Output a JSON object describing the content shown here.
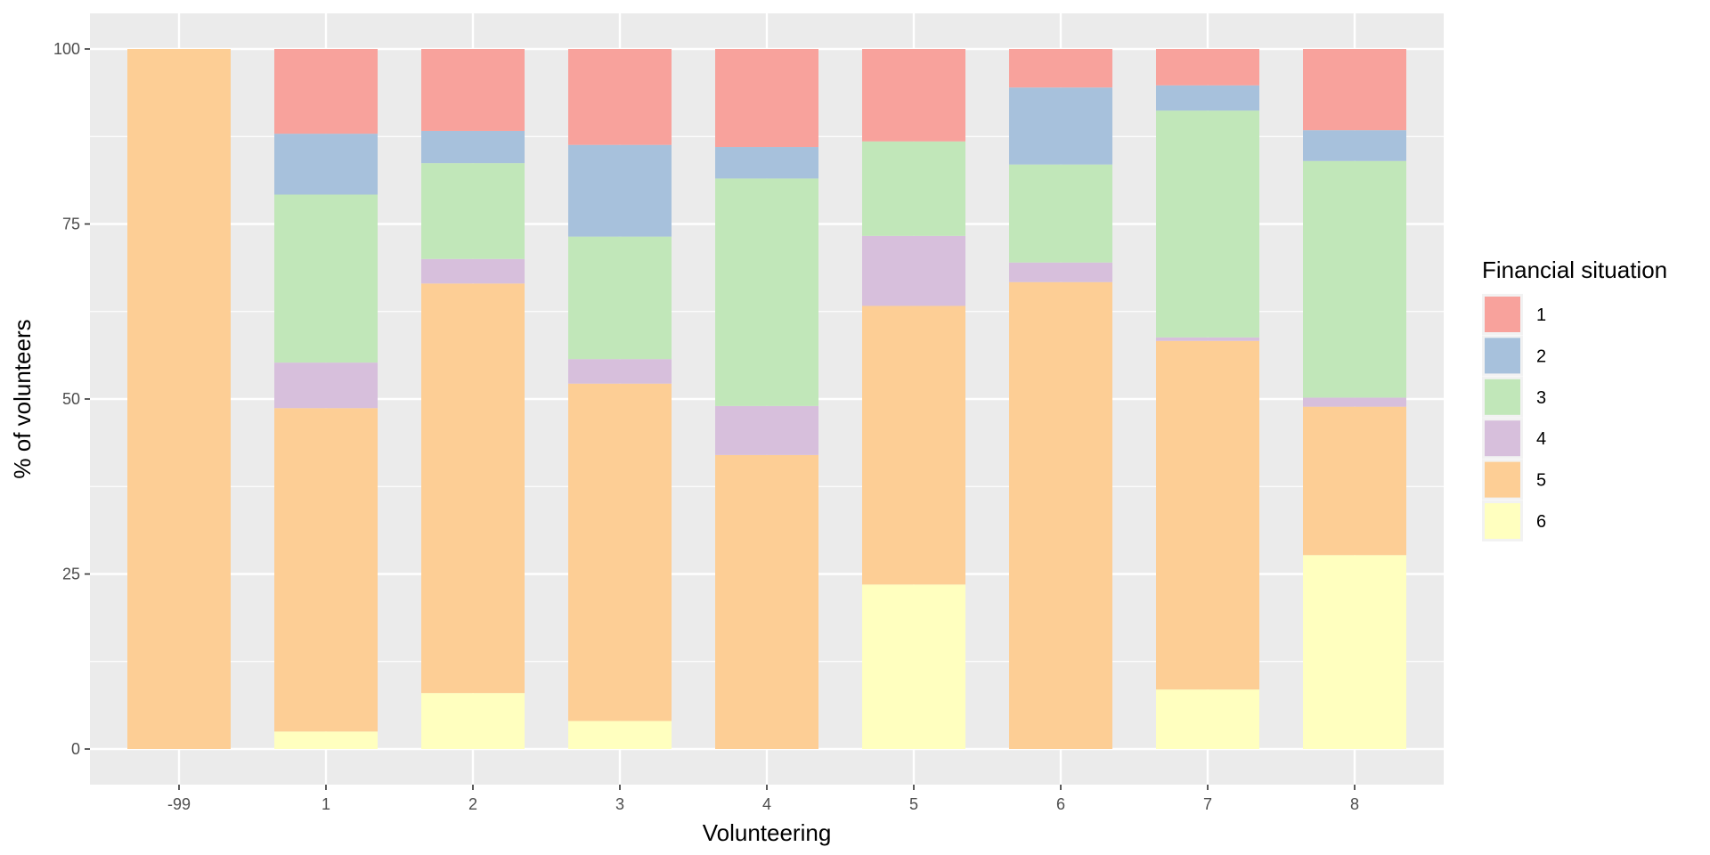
{
  "chart_data": {
    "type": "bar",
    "stacked": true,
    "categories": [
      "-99",
      "1",
      "2",
      "3",
      "4",
      "5",
      "6",
      "7",
      "8"
    ],
    "xlabel": "Volunteering",
    "ylabel": "% of volunteers",
    "ylim": [
      0,
      100
    ],
    "yticks": [
      "0",
      "25",
      "50",
      "75",
      "100"
    ],
    "grid": true,
    "legend": {
      "title": "Financial situation",
      "position": "right"
    },
    "series": [
      {
        "name": "6",
        "color": "#FFFFBF",
        "values": [
          0,
          2.5,
          8,
          4,
          0,
          23.5,
          0,
          8.5,
          27.7
        ]
      },
      {
        "name": "5",
        "color": "#FDCE95",
        "values": [
          100,
          46.2,
          58.5,
          48.2,
          42,
          39.8,
          66.7,
          49.8,
          21.2
        ]
      },
      {
        "name": "4",
        "color": "#D7BFDC",
        "values": [
          0,
          6.5,
          3.5,
          3.5,
          7,
          10,
          2.8,
          0.5,
          1.3
        ]
      },
      {
        "name": "3",
        "color": "#C1E7B9",
        "values": [
          0,
          24,
          13.7,
          17.5,
          32.5,
          13.5,
          14,
          32.4,
          33.8
        ]
      },
      {
        "name": "2",
        "color": "#A7C1DC",
        "values": [
          0,
          8.7,
          4.6,
          13.1,
          4.5,
          0,
          11,
          3.6,
          4.4
        ]
      },
      {
        "name": "1",
        "color": "#F8A29C",
        "values": [
          0,
          12.1,
          11.7,
          13.7,
          14,
          13.2,
          5.5,
          5.2,
          11.6
        ]
      }
    ]
  }
}
